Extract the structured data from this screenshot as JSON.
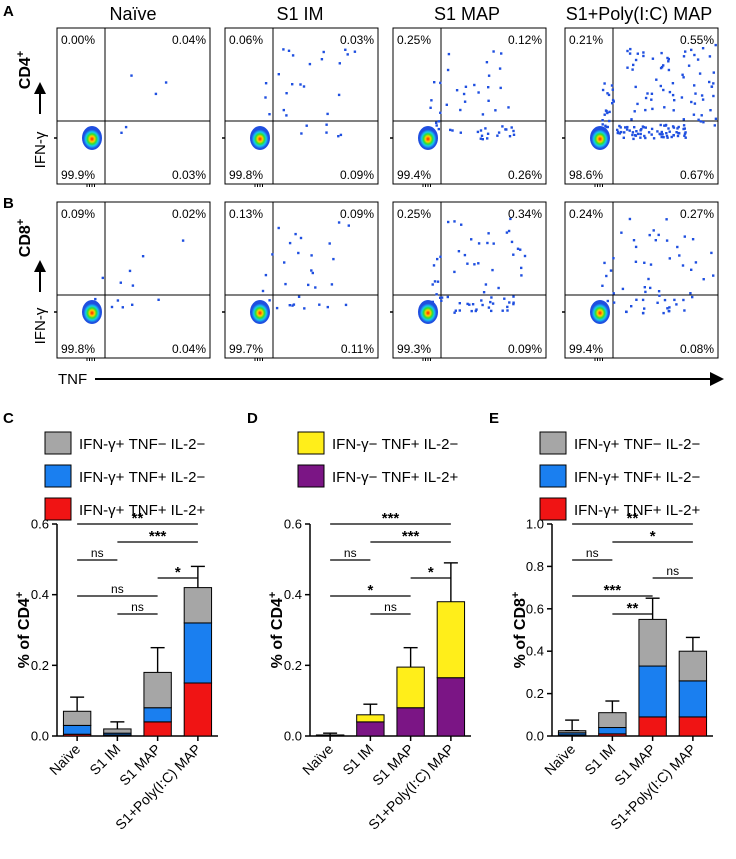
{
  "flow_panels": {
    "top_labels": [
      "A",
      "B"
    ],
    "row_labels": [
      "CD4",
      "CD8"
    ],
    "row_label_sup": "+",
    "y_axis_label": "IFN-γ",
    "x_axis_label": "TNF",
    "group_titles": [
      "Naïve",
      "S1 IM",
      "S1 MAP",
      "S1+Poly(I:C) MAP"
    ],
    "quadrant_values": [
      [
        {
          "ul": "0.00%",
          "ur": "0.04%",
          "ll": "99.9%",
          "lr": "0.03%"
        },
        {
          "ul": "0.06%",
          "ur": "0.03%",
          "ll": "99.8%",
          "lr": "0.09%"
        },
        {
          "ul": "0.25%",
          "ur": "0.12%",
          "ll": "99.4%",
          "lr": "0.26%"
        },
        {
          "ul": "0.21%",
          "ur": "0.55%",
          "ll": "98.6%",
          "lr": "0.67%"
        }
      ],
      [
        {
          "ul": "0.09%",
          "ur": "0.02%",
          "ll": "99.8%",
          "lr": "0.04%"
        },
        {
          "ul": "0.13%",
          "ur": "0.09%",
          "ll": "99.7%",
          "lr": "0.11%"
        },
        {
          "ul": "0.25%",
          "ur": "0.34%",
          "ll": "99.3%",
          "lr": "0.09%"
        },
        {
          "ul": "0.24%",
          "ur": "0.27%",
          "ll": "99.4%",
          "lr": "0.08%"
        }
      ]
    ]
  },
  "colors": {
    "gray": "#a6a6a6",
    "blue": "#1a7ff0",
    "red": "#f01414",
    "yellow": "#ffee1a",
    "purple": "#7b1585",
    "dots": "#1f4fe0"
  },
  "chart_data": [
    {
      "type": "bar",
      "panel_label": "C",
      "stacked": true,
      "categories": [
        "Naïve",
        "S1 IM",
        "S1 MAP",
        "S1+Poly(I:C) MAP"
      ],
      "ylabel": "% of CD4",
      "ylabel_sup": "+",
      "ylim": [
        0,
        0.6
      ],
      "yticks": [
        "0.0",
        "0.2",
        "0.4",
        "0.6"
      ],
      "legend": [
        {
          "text": "IFN-γ+ TNF− IL-2−",
          "color_key": "gray"
        },
        {
          "text": "IFN-γ+ TNF+ IL-2−",
          "color_key": "blue"
        },
        {
          "text": "IFN-γ+ TNF+ IL-2+",
          "color_key": "red"
        }
      ],
      "series": [
        {
          "name": "IFN-γ+ TNF+ IL-2+",
          "color_key": "red",
          "values": [
            0.005,
            0.003,
            0.04,
            0.15
          ],
          "err": [
            0,
            0,
            0.02,
            0.05
          ]
        },
        {
          "name": "IFN-γ+ TNF+ IL-2−",
          "color_key": "blue",
          "values": [
            0.025,
            0.005,
            0.04,
            0.17
          ],
          "err": [
            0.015,
            0.005,
            0.03,
            0.08
          ]
        },
        {
          "name": "IFN-γ+ TNF− IL-2−",
          "color_key": "gray",
          "values": [
            0.04,
            0.012,
            0.1,
            0.1
          ],
          "err": [
            0.04,
            0.02,
            0.07,
            0.06
          ]
        }
      ],
      "significance": [
        {
          "from": 0,
          "to": 3,
          "label": "**"
        },
        {
          "from": 1,
          "to": 3,
          "label": "***"
        },
        {
          "from": 0,
          "to": 1,
          "label": "ns"
        },
        {
          "from": 2,
          "to": 3,
          "label": "*"
        },
        {
          "from": 0,
          "to": 2,
          "label": "ns"
        },
        {
          "from": 1,
          "to": 2,
          "label": "ns"
        }
      ]
    },
    {
      "type": "bar",
      "panel_label": "D",
      "stacked": true,
      "categories": [
        "Naïve",
        "S1 IM",
        "S1 MAP",
        "S1+Poly(I:C) MAP"
      ],
      "ylabel": "% of CD4",
      "ylabel_sup": "+",
      "ylim": [
        0,
        0.6
      ],
      "yticks": [
        "0.0",
        "0.2",
        "0.4",
        "0.6"
      ],
      "legend": [
        {
          "text": "IFN-γ− TNF+ IL-2−",
          "color_key": "yellow"
        },
        {
          "text": "IFN-γ− TNF+ IL-2+",
          "color_key": "purple"
        }
      ],
      "series": [
        {
          "name": "IFN-γ− TNF+ IL-2+",
          "color_key": "purple",
          "values": [
            0.002,
            0.04,
            0.08,
            0.165
          ],
          "err": [
            0,
            0.01,
            0.025,
            0.08
          ]
        },
        {
          "name": "IFN-γ− TNF+ IL-2−",
          "color_key": "yellow",
          "values": [
            0.001,
            0.02,
            0.115,
            0.215
          ],
          "err": [
            0.005,
            0.03,
            0.055,
            0.11
          ]
        }
      ],
      "significance": [
        {
          "from": 0,
          "to": 3,
          "label": "***"
        },
        {
          "from": 1,
          "to": 3,
          "label": "***"
        },
        {
          "from": 0,
          "to": 1,
          "label": "ns"
        },
        {
          "from": 2,
          "to": 3,
          "label": "*"
        },
        {
          "from": 0,
          "to": 2,
          "label": "*"
        },
        {
          "from": 1,
          "to": 2,
          "label": "ns"
        }
      ]
    },
    {
      "type": "bar",
      "panel_label": "E",
      "stacked": true,
      "categories": [
        "Naïve",
        "S1 IM",
        "S1 MAP",
        "S1+Poly(I:C) MAP"
      ],
      "ylabel": "% of CD8",
      "ylabel_sup": "+",
      "ylim": [
        0,
        1.0
      ],
      "yticks": [
        "0.0",
        "0.2",
        "0.4",
        "0.6",
        "0.8",
        "1.0"
      ],
      "legend": [
        {
          "text": "IFN-γ+ TNF− IL-2−",
          "color_key": "gray"
        },
        {
          "text": "IFN-γ+ TNF+ IL-2−",
          "color_key": "blue"
        },
        {
          "text": "IFN-γ+ TNF+ IL-2+",
          "color_key": "red"
        }
      ],
      "series": [
        {
          "name": "IFN-γ+ TNF+ IL-2+",
          "color_key": "red",
          "values": [
            0.005,
            0.01,
            0.09,
            0.09
          ],
          "err": [
            0,
            0.005,
            0.09,
            0.07
          ]
        },
        {
          "name": "IFN-γ+ TNF+ IL-2−",
          "color_key": "blue",
          "values": [
            0.01,
            0.03,
            0.24,
            0.17
          ],
          "err": [
            0.01,
            0.02,
            0.1,
            0.07
          ]
        },
        {
          "name": "IFN-γ+ TNF− IL-2−",
          "color_key": "gray",
          "values": [
            0.01,
            0.07,
            0.22,
            0.14
          ],
          "err": [
            0.05,
            0.055,
            0.1,
            0.065
          ]
        }
      ],
      "significance": [
        {
          "from": 0,
          "to": 3,
          "label": "**"
        },
        {
          "from": 1,
          "to": 3,
          "label": "*"
        },
        {
          "from": 0,
          "to": 1,
          "label": "ns"
        },
        {
          "from": 2,
          "to": 3,
          "label": "ns"
        },
        {
          "from": 0,
          "to": 2,
          "label": "***"
        },
        {
          "from": 1,
          "to": 2,
          "label": "**"
        }
      ]
    }
  ]
}
